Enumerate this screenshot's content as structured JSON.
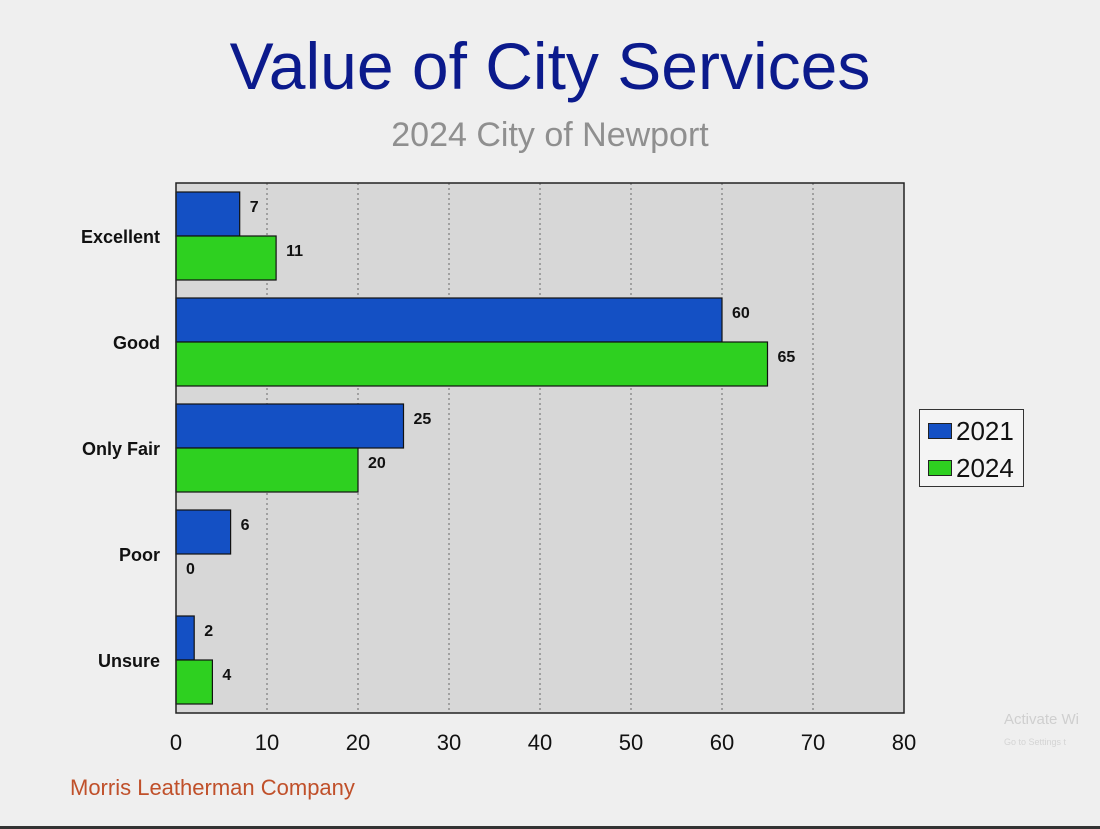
{
  "chart_data": {
    "type": "bar",
    "orientation": "horizontal",
    "title": "Value of City Services",
    "subtitle": "2024 City of Newport",
    "categories": [
      "Excellent",
      "Good",
      "Only Fair",
      "Poor",
      "Unsure"
    ],
    "series": [
      {
        "name": "2021",
        "values": [
          7,
          60,
          25,
          6,
          2
        ],
        "color": "#1450c4"
      },
      {
        "name": "2024",
        "values": [
          11,
          65,
          20,
          0,
          4
        ],
        "color": "#2ed020"
      }
    ],
    "xlim": [
      0,
      80
    ],
    "xticks": [
      0,
      10,
      20,
      30,
      40,
      50,
      60,
      70,
      80
    ],
    "grid": "vertical dotted",
    "legend": "right",
    "plot_background": "#d7d7d7"
  },
  "footer": "Morris Leatherman Company",
  "watermark": {
    "line1": "Activate Wi",
    "line2": "Go to Settings t"
  }
}
